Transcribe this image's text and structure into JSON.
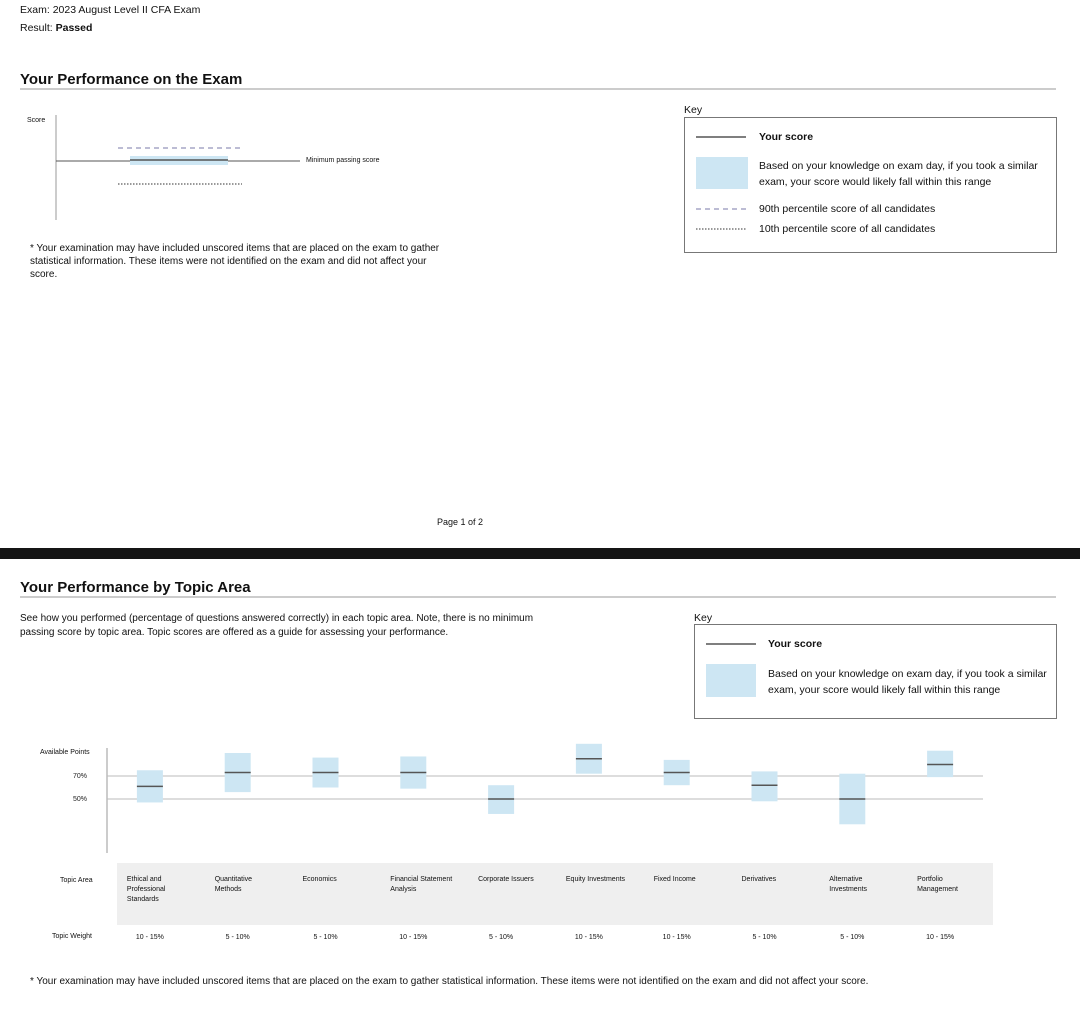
{
  "header": {
    "exam_label": "Exam:",
    "exam": "2023 August Level II CFA Exam",
    "result_label": "Result:",
    "result": "Passed"
  },
  "exam_performance": {
    "title": "Your Performance on the Exam",
    "score_label": "Score",
    "min_pass_label": "Minimum passing score",
    "note": "* Your examination may have included unscored items that are placed on the exam to gather statistical information. These items were not identified on the exam and did not affect your score.",
    "key": {
      "title": "Key",
      "your_score": "Your score",
      "range": "Based on your knowledge on exam day, if you took a similar exam, your score would likely fall within this range",
      "p90": "90th percentile score of all candidates",
      "p10": "10th percentile score of all candidates"
    }
  },
  "page_number": "Page 1 of 2",
  "topic_performance": {
    "title": "Your Performance by Topic Area",
    "intro": "See how you performed (percentage of questions answered correctly) in each topic area. Note, there is no minimum passing score by topic area. Topic scores are offered as a guide for assessing your performance.",
    "key": {
      "title": "Key",
      "your_score": "Your score",
      "range": "Based on your knowledge on exam day, if you took a similar exam, your score would likely fall within this range"
    },
    "note": "* Your examination may have included unscored items that are placed on the exam to gather statistical information. These items were not identified on the exam and did not affect your score."
  },
  "chart_data": {
    "type": "range",
    "y_label": "Available Points",
    "topic_label": "Topic Area",
    "weight_label": "Topic Weight",
    "categories": [
      "Ethical and Professional Standards",
      "Quantitative Methods",
      "Economics",
      "Financial Statement Analysis",
      "Corporate Issuers",
      "Equity Investments",
      "Fixed Income",
      "Derivatives",
      "Alternative Investments",
      "Portfolio Management"
    ],
    "weights": [
      "10 - 15%",
      "5 - 10%",
      "5 - 10%",
      "10 - 15%",
      "5 - 10%",
      "10 - 15%",
      "10 - 15%",
      "5 - 10%",
      "5 - 10%",
      "10 - 15%"
    ],
    "ylim": [
      0,
      100
    ],
    "yticks": [
      {
        "value": 50,
        "label": "50%"
      },
      {
        "value": 70,
        "label": "70%"
      }
    ],
    "grid": true,
    "score": {
      "color": "#555555",
      "values": [
        61,
        73,
        73,
        73,
        50,
        85,
        73,
        62,
        50,
        80
      ]
    },
    "range": {
      "color": "#cde6f3",
      "low": [
        47,
        56,
        60,
        59,
        37,
        72,
        62,
        48,
        28,
        69
      ],
      "high": [
        75,
        90,
        86,
        87,
        62,
        98,
        84,
        74,
        72,
        92
      ]
    }
  }
}
